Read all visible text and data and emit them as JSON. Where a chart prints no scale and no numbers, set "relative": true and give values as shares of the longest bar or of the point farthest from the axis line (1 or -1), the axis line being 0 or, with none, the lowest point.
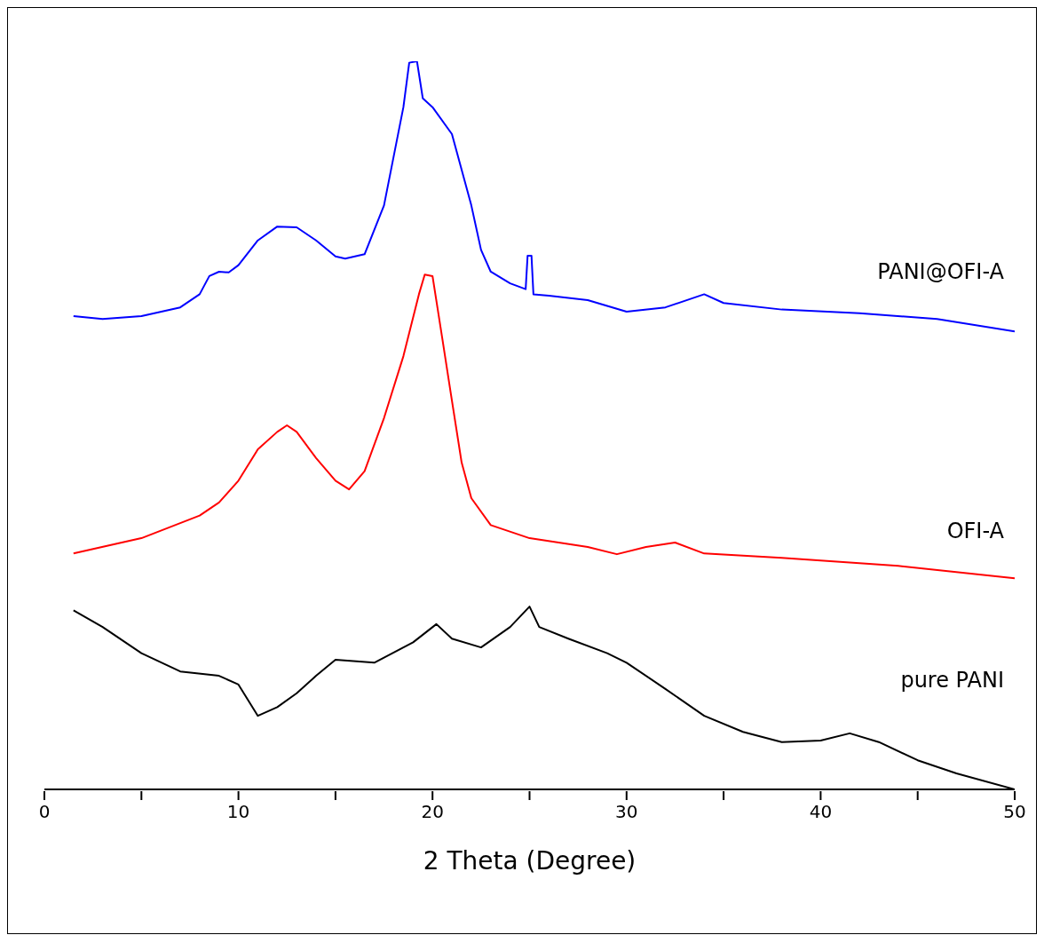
{
  "chart_data": {
    "type": "line",
    "relative": true,
    "xlabel": "2 Theta (Degree)",
    "xlim": [
      0,
      50
    ],
    "xticks": [
      0,
      {
        "value": 5,
        "label": null
      },
      10,
      {
        "value": 15,
        "label": null
      },
      20,
      {
        "value": 25,
        "label": null
      },
      30,
      {
        "value": 35,
        "label": null
      },
      40,
      {
        "value": 45,
        "label": null
      },
      50
    ],
    "grid": false,
    "legend": false,
    "marker": "none",
    "line_style": "solid",
    "series": [
      {
        "name": "PANI@OFI-A",
        "color": "#0000ff",
        "x": [
          1.5,
          3,
          5,
          7,
          8,
          8.5,
          9,
          9.5,
          10,
          11,
          12,
          13,
          14,
          15,
          15.5,
          16.5,
          17.5,
          18.5,
          18.8,
          19.2,
          19.5,
          20,
          21,
          22,
          22.5,
          23,
          24,
          24.8,
          24.9,
          25.1,
          25.2,
          26,
          28,
          30,
          32,
          34,
          35,
          38,
          42,
          46,
          50
        ],
        "values": [
          0.65,
          0.646,
          0.65,
          0.662,
          0.68,
          0.705,
          0.711,
          0.71,
          0.72,
          0.754,
          0.773,
          0.772,
          0.754,
          0.732,
          0.729,
          0.735,
          0.802,
          0.937,
          0.998,
          1,
          0.949,
          0.937,
          0.9,
          0.802,
          0.741,
          0.711,
          0.695,
          0.687,
          0.733,
          0.733,
          0.68,
          0.678,
          0.672,
          0.656,
          0.662,
          0.68,
          0.668,
          0.659,
          0.654,
          0.646,
          0.629
        ]
      },
      {
        "name": "OFI-A",
        "color": "#ff0000",
        "x": [
          1.5,
          5,
          8,
          9,
          10,
          11,
          12,
          12.5,
          13,
          14,
          15,
          15.7,
          16.5,
          17.5,
          18.5,
          19.3,
          19.6,
          20,
          20.5,
          21,
          21.5,
          22,
          23,
          25,
          28,
          29.5,
          31,
          32.5,
          34,
          38,
          44,
          50
        ],
        "values": [
          0.324,
          0.345,
          0.376,
          0.394,
          0.424,
          0.467,
          0.491,
          0.5,
          0.491,
          0.455,
          0.424,
          0.412,
          0.437,
          0.51,
          0.595,
          0.68,
          0.707,
          0.705,
          0.62,
          0.534,
          0.449,
          0.4,
          0.363,
          0.345,
          0.333,
          0.323,
          0.333,
          0.339,
          0.324,
          0.318,
          0.307,
          0.29
        ]
      },
      {
        "name": "pure PANI",
        "color": "#000000",
        "x": [
          1.5,
          3,
          5,
          7,
          9,
          10,
          11,
          12,
          13,
          14,
          15,
          17,
          19,
          20.2,
          21,
          22.5,
          24,
          25,
          25.5,
          27,
          29,
          30,
          32,
          34,
          36,
          38,
          40,
          41.5,
          43,
          45,
          47,
          50
        ],
        "values": [
          0.246,
          0.223,
          0.187,
          0.162,
          0.156,
          0.144,
          0.101,
          0.113,
          0.132,
          0.156,
          0.178,
          0.174,
          0.202,
          0.227,
          0.207,
          0.195,
          0.223,
          0.251,
          0.223,
          0.207,
          0.187,
          0.174,
          0.138,
          0.101,
          0.079,
          0.065,
          0.067,
          0.077,
          0.065,
          0.04,
          0.022,
          0
        ]
      }
    ]
  }
}
